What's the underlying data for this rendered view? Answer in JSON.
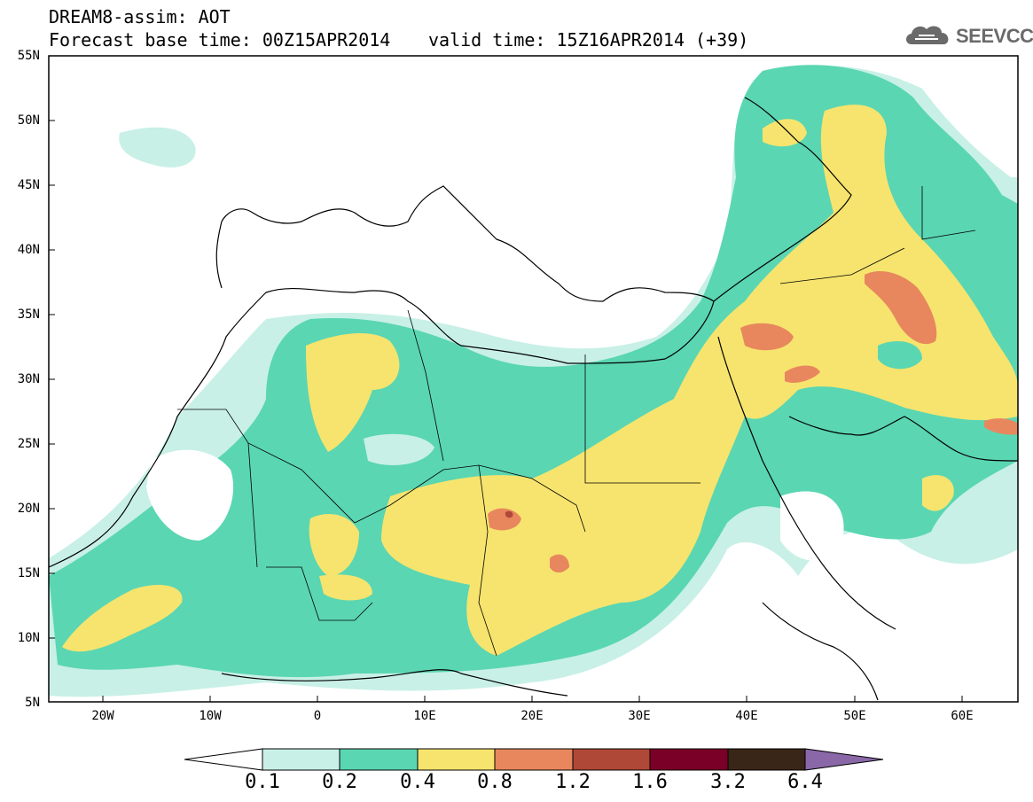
{
  "header": {
    "line1": "DREAM8-assim: AOT",
    "base_time": "Forecast base time: 00Z15APR2014",
    "valid_time": "valid time: 15Z16APR2014 (+39)",
    "logo_text": "SEEVCCC",
    "logo_icon": "cloud-icon"
  },
  "map": {
    "lat_labels": [
      "55N",
      "50N",
      "45N",
      "40N",
      "35N",
      "30N",
      "25N",
      "20N",
      "15N",
      "10N",
      "5N"
    ],
    "lon_labels": [
      "20W",
      "10W",
      "0",
      "10E",
      "20E",
      "30E",
      "40E",
      "50E",
      "60E"
    ]
  },
  "colorbar": {
    "labels": [
      "0.1",
      "0.2",
      "0.4",
      "0.8",
      "1.2",
      "1.6",
      "3.2",
      "6.4"
    ],
    "colors": [
      "#ffffff",
      "#c8f0e6",
      "#5ad6b2",
      "#f6e46e",
      "#e8875e",
      "#b04838",
      "#7a0028",
      "#3a2618",
      "#8a68a8"
    ]
  },
  "chart_data": {
    "type": "heatmap",
    "variable": "AOT",
    "levels": [
      0.1,
      0.2,
      0.4,
      0.8,
      1.2,
      1.6,
      3.2,
      6.4
    ],
    "lat_range": [
      5,
      55
    ],
    "lon_range": [
      -25,
      65
    ]
  }
}
